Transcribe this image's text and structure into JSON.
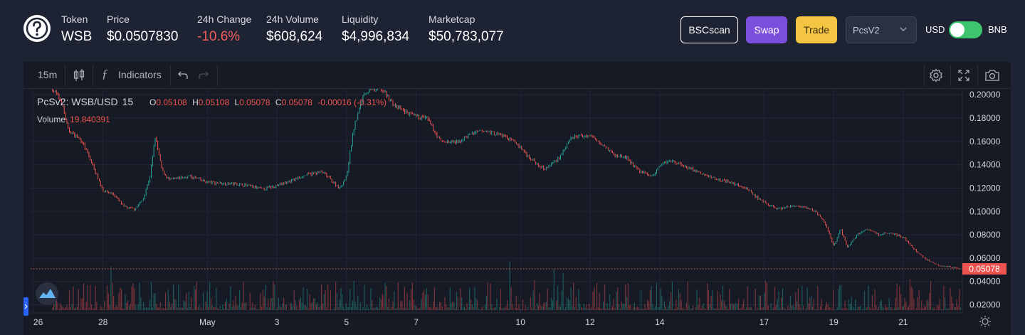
{
  "header": {
    "token": {
      "label": "Token",
      "value": "WSB"
    },
    "price": {
      "label": "Price",
      "value": "$0.0507830"
    },
    "change": {
      "label": "24h Change",
      "value": "-10.6%"
    },
    "volume": {
      "label": "24h Volume",
      "value": "$608,624"
    },
    "liquidity": {
      "label": "Liquidity",
      "value": "$4,996,834"
    },
    "marketcap": {
      "label": "Marketcap",
      "value": "$50,783,077"
    },
    "buttons": {
      "bscscan": "BSCscan",
      "swap": "Swap",
      "trade": "Trade"
    },
    "exchange_select": "PcsV2",
    "currency_left": "USD",
    "currency_right": "BNB",
    "colors": {
      "swap": "#7b4fdc",
      "trade": "#f4c542",
      "negative": "#f25f5c",
      "toggle": "#3ec46d"
    }
  },
  "toolbar": {
    "interval": "15m",
    "indicators": "Indicators"
  },
  "chart_data": {
    "type": "candlestick",
    "symbol": "PcSv2: WSB/USD",
    "interval": "15",
    "ohlc": {
      "O": "0.05108",
      "H": "0.05108",
      "L": "0.05078",
      "C": "0.05078",
      "change": "-0.00016 (-0.31%)"
    },
    "volume_label": "Volume",
    "volume_value": "19.840391",
    "last_price": 0.05078,
    "last_price_label": "0.05078",
    "ylim": [
      0.013,
      0.205
    ],
    "y_ticks": [
      0.2,
      0.18,
      0.16,
      0.14,
      0.12,
      0.1,
      0.08,
      0.06,
      0.04,
      0.02
    ],
    "y_tick_labels": [
      "0.20000",
      "0.18000",
      "0.16000",
      "0.14000",
      "0.12000",
      "0.10000",
      "0.08000",
      "0.06000",
      "0.04000",
      "0.02000"
    ],
    "x_ticks": [
      {
        "t": 0.0,
        "label": "26"
      },
      {
        "t": 2.0,
        "label": "28"
      },
      {
        "t": 5.0,
        "label": "May"
      },
      {
        "t": 7.0,
        "label": "3"
      },
      {
        "t": 9.0,
        "label": "5"
      },
      {
        "t": 11.0,
        "label": "7"
      },
      {
        "t": 14.0,
        "label": "10"
      },
      {
        "t": 16.0,
        "label": "12"
      },
      {
        "t": 18.0,
        "label": "14"
      },
      {
        "t": 21.0,
        "label": "17"
      },
      {
        "t": 23.0,
        "label": "19"
      },
      {
        "t": 25.0,
        "label": "21"
      }
    ],
    "xlim": [
      -0.08,
      26.7
    ],
    "price_path": [
      [
        0.55,
        0.205
      ],
      [
        0.8,
        0.195
      ],
      [
        1.0,
        0.17
      ],
      [
        1.4,
        0.16
      ],
      [
        1.7,
        0.14
      ],
      [
        2.0,
        0.118
      ],
      [
        2.3,
        0.115
      ],
      [
        2.6,
        0.104
      ],
      [
        2.9,
        0.102
      ],
      [
        3.15,
        0.11
      ],
      [
        3.35,
        0.13
      ],
      [
        3.5,
        0.164
      ],
      [
        3.7,
        0.135
      ],
      [
        3.9,
        0.127
      ],
      [
        4.5,
        0.13
      ],
      [
        5.0,
        0.125
      ],
      [
        5.5,
        0.124
      ],
      [
        6.0,
        0.123
      ],
      [
        6.6,
        0.119
      ],
      [
        7.2,
        0.124
      ],
      [
        7.8,
        0.131
      ],
      [
        8.3,
        0.134
      ],
      [
        8.8,
        0.12
      ],
      [
        9.0,
        0.13
      ],
      [
        9.2,
        0.17
      ],
      [
        9.5,
        0.202
      ],
      [
        10.0,
        0.205
      ],
      [
        10.4,
        0.19
      ],
      [
        10.9,
        0.182
      ],
      [
        11.3,
        0.18
      ],
      [
        11.7,
        0.16
      ],
      [
        12.2,
        0.159
      ],
      [
        12.6,
        0.167
      ],
      [
        13.0,
        0.169
      ],
      [
        13.5,
        0.165
      ],
      [
        13.9,
        0.158
      ],
      [
        14.3,
        0.145
      ],
      [
        14.7,
        0.136
      ],
      [
        15.1,
        0.146
      ],
      [
        15.5,
        0.164
      ],
      [
        16.0,
        0.165
      ],
      [
        16.4,
        0.157
      ],
      [
        16.7,
        0.148
      ],
      [
        17.0,
        0.147
      ],
      [
        17.4,
        0.135
      ],
      [
        17.8,
        0.13
      ],
      [
        18.0,
        0.14
      ],
      [
        18.3,
        0.144
      ],
      [
        18.8,
        0.138
      ],
      [
        19.3,
        0.131
      ],
      [
        19.9,
        0.126
      ],
      [
        20.5,
        0.12
      ],
      [
        20.9,
        0.109
      ],
      [
        21.4,
        0.102
      ],
      [
        21.9,
        0.105
      ],
      [
        22.5,
        0.1
      ],
      [
        22.7,
        0.092
      ],
      [
        22.85,
        0.083
      ],
      [
        23.0,
        0.07
      ],
      [
        23.2,
        0.085
      ],
      [
        23.4,
        0.069
      ],
      [
        23.7,
        0.081
      ],
      [
        24.0,
        0.085
      ],
      [
        24.3,
        0.08
      ],
      [
        24.6,
        0.082
      ],
      [
        25.0,
        0.078
      ],
      [
        25.3,
        0.068
      ],
      [
        25.6,
        0.06
      ],
      [
        26.0,
        0.054
      ],
      [
        26.7,
        0.05078
      ]
    ]
  }
}
